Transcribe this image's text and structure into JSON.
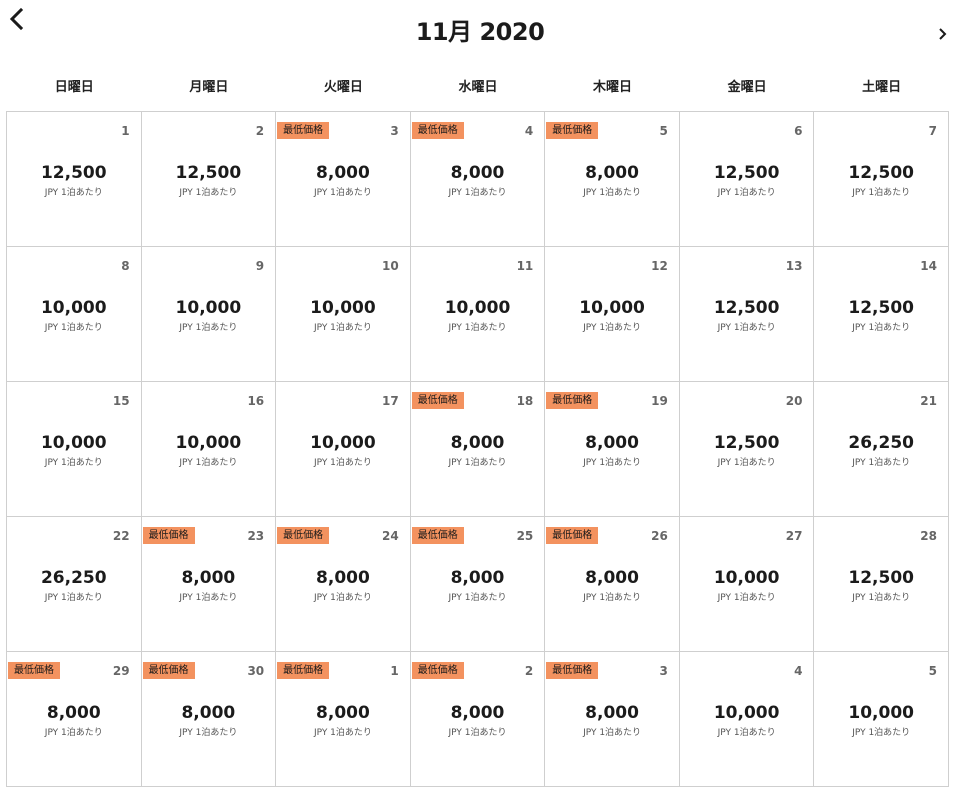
{
  "header": {
    "month_title": "11月 2020",
    "prev_icon": "chevron-left-icon",
    "next_icon": "chevron-right-icon"
  },
  "weekdays": [
    "日曜日",
    "月曜日",
    "火曜日",
    "水曜日",
    "木曜日",
    "金曜日",
    "土曜日"
  ],
  "badge_color": "#f3925f",
  "weeks": [
    [
      {
        "day": "1",
        "price": "12,500",
        "unit": "JPY 1泊あたり",
        "badge": ""
      },
      {
        "day": "2",
        "price": "12,500",
        "unit": "JPY 1泊あたり",
        "badge": ""
      },
      {
        "day": "3",
        "price": "8,000",
        "unit": "JPY 1泊あたり",
        "badge": "最低価格"
      },
      {
        "day": "4",
        "price": "8,000",
        "unit": "JPY 1泊あたり",
        "badge": "最低価格"
      },
      {
        "day": "5",
        "price": "8,000",
        "unit": "JPY 1泊あたり",
        "badge": "最低価格"
      },
      {
        "day": "6",
        "price": "12,500",
        "unit": "JPY 1泊あたり",
        "badge": ""
      },
      {
        "day": "7",
        "price": "12,500",
        "unit": "JPY 1泊あたり",
        "badge": ""
      }
    ],
    [
      {
        "day": "8",
        "price": "10,000",
        "unit": "JPY 1泊あたり",
        "badge": ""
      },
      {
        "day": "9",
        "price": "10,000",
        "unit": "JPY 1泊あたり",
        "badge": ""
      },
      {
        "day": "10",
        "price": "10,000",
        "unit": "JPY 1泊あたり",
        "badge": ""
      },
      {
        "day": "11",
        "price": "10,000",
        "unit": "JPY 1泊あたり",
        "badge": ""
      },
      {
        "day": "12",
        "price": "10,000",
        "unit": "JPY 1泊あたり",
        "badge": ""
      },
      {
        "day": "13",
        "price": "12,500",
        "unit": "JPY 1泊あたり",
        "badge": ""
      },
      {
        "day": "14",
        "price": "12,500",
        "unit": "JPY 1泊あたり",
        "badge": ""
      }
    ],
    [
      {
        "day": "15",
        "price": "10,000",
        "unit": "JPY 1泊あたり",
        "badge": ""
      },
      {
        "day": "16",
        "price": "10,000",
        "unit": "JPY 1泊あたり",
        "badge": ""
      },
      {
        "day": "17",
        "price": "10,000",
        "unit": "JPY 1泊あたり",
        "badge": ""
      },
      {
        "day": "18",
        "price": "8,000",
        "unit": "JPY 1泊あたり",
        "badge": "最低価格"
      },
      {
        "day": "19",
        "price": "8,000",
        "unit": "JPY 1泊あたり",
        "badge": "最低価格"
      },
      {
        "day": "20",
        "price": "12,500",
        "unit": "JPY 1泊あたり",
        "badge": ""
      },
      {
        "day": "21",
        "price": "26,250",
        "unit": "JPY 1泊あたり",
        "badge": ""
      }
    ],
    [
      {
        "day": "22",
        "price": "26,250",
        "unit": "JPY 1泊あたり",
        "badge": ""
      },
      {
        "day": "23",
        "price": "8,000",
        "unit": "JPY 1泊あたり",
        "badge": "最低価格"
      },
      {
        "day": "24",
        "price": "8,000",
        "unit": "JPY 1泊あたり",
        "badge": "最低価格"
      },
      {
        "day": "25",
        "price": "8,000",
        "unit": "JPY 1泊あたり",
        "badge": "最低価格"
      },
      {
        "day": "26",
        "price": "8,000",
        "unit": "JPY 1泊あたり",
        "badge": "最低価格"
      },
      {
        "day": "27",
        "price": "10,000",
        "unit": "JPY 1泊あたり",
        "badge": ""
      },
      {
        "day": "28",
        "price": "12,500",
        "unit": "JPY 1泊あたり",
        "badge": ""
      }
    ],
    [
      {
        "day": "29",
        "price": "8,000",
        "unit": "JPY 1泊あたり",
        "badge": "最低価格"
      },
      {
        "day": "30",
        "price": "8,000",
        "unit": "JPY 1泊あたり",
        "badge": "最低価格"
      },
      {
        "day": "1",
        "price": "8,000",
        "unit": "JPY 1泊あたり",
        "badge": "最低価格"
      },
      {
        "day": "2",
        "price": "8,000",
        "unit": "JPY 1泊あたり",
        "badge": "最低価格"
      },
      {
        "day": "3",
        "price": "8,000",
        "unit": "JPY 1泊あたり",
        "badge": "最低価格"
      },
      {
        "day": "4",
        "price": "10,000",
        "unit": "JPY 1泊あたり",
        "badge": ""
      },
      {
        "day": "5",
        "price": "10,000",
        "unit": "JPY 1泊あたり",
        "badge": ""
      }
    ]
  ]
}
